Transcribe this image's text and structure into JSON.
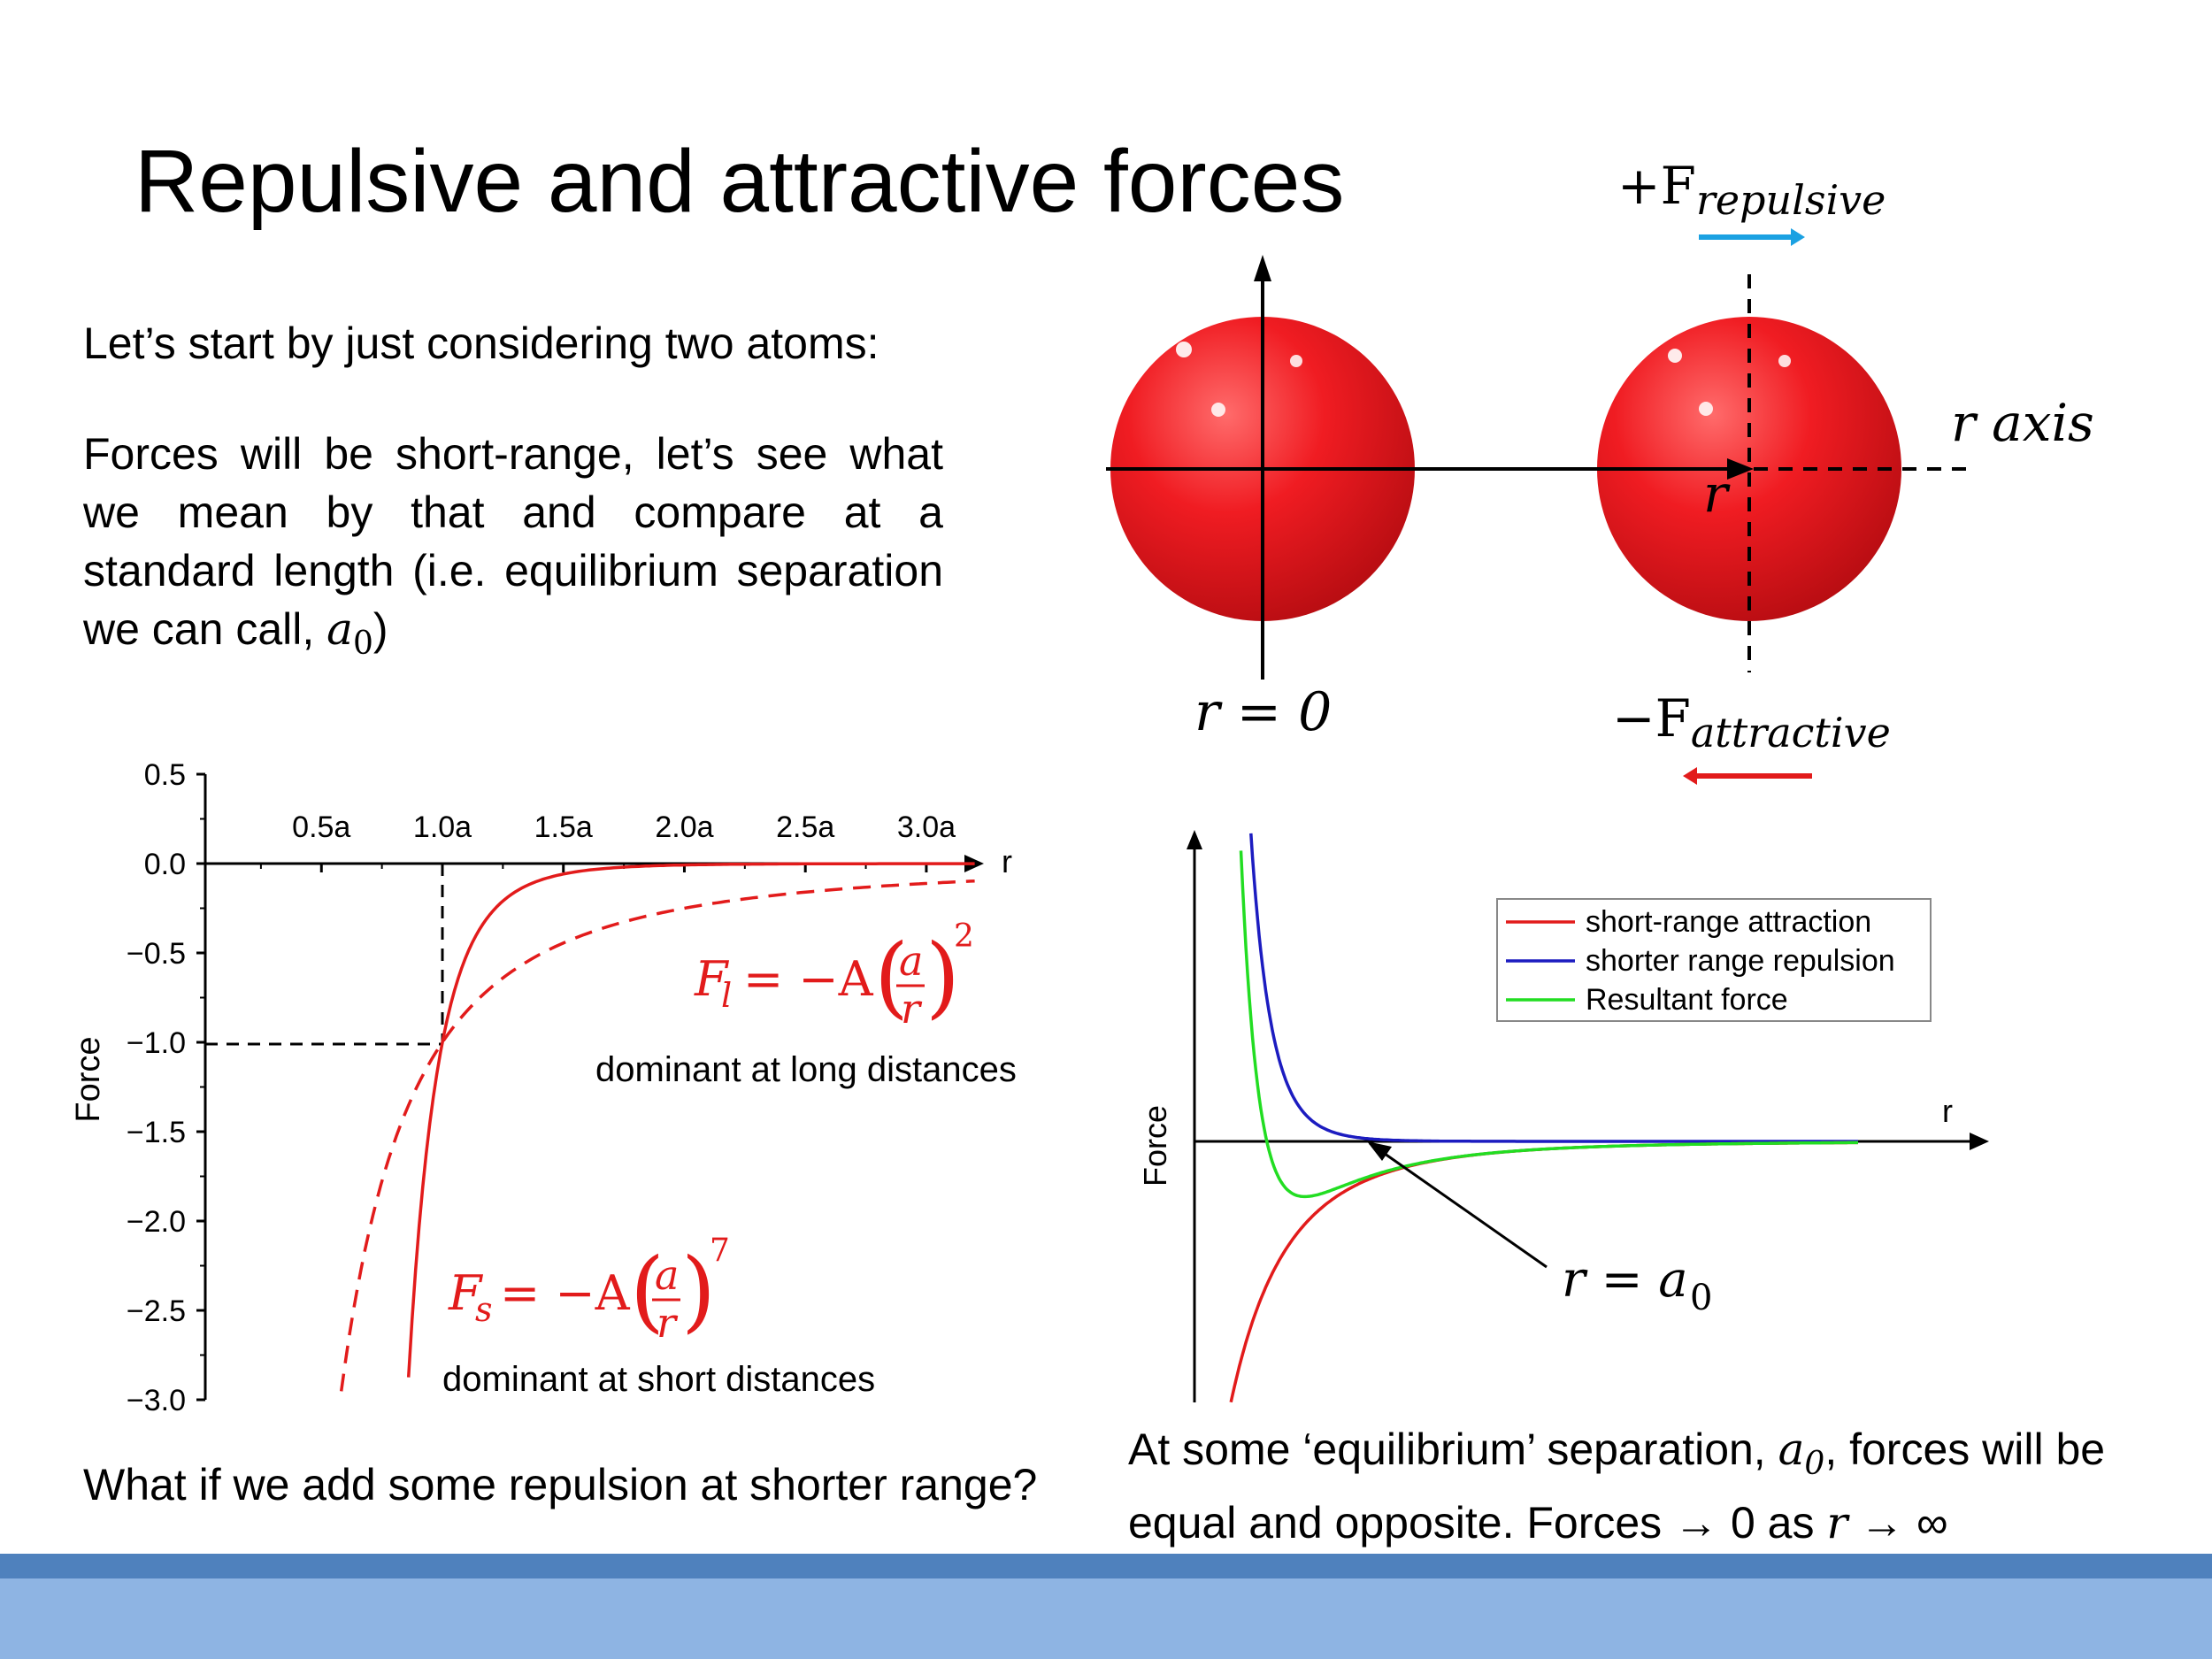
{
  "title": "Repulsive and attractive forces",
  "intro": "Let’s start by just considering two atoms:",
  "paragraph": {
    "text": "Forces will be short-range, let’s see what we mean by that and compare at a standard length (i.e. equilibrium separation we can call, ",
    "symbol": "a",
    "subscript": "0",
    "close": ")"
  },
  "question": "What if we add some repulsion at shorter range?",
  "conclusion": {
    "part1": "At some ‘equilibrium’ separation, ",
    "sym": "a",
    "sub": "0",
    "part2": ", forces will be equal and opposite. Forces → 0 as ",
    "r": "r",
    "arrow": " → ∞"
  },
  "diagram": {
    "plus_sign": "+F",
    "plus_sub": "repulsive",
    "minus_sign": "−F",
    "minus_sub": "attractive",
    "r_axis": "r axis",
    "r_label": "r",
    "r_zero": "r = 0",
    "colors": {
      "atom": "#e8141c",
      "repulsive_arrow": "#1ba1e2",
      "attractive_arrow": "#e21b1b"
    }
  },
  "chart_left": {
    "ylabel": "Force",
    "xlabel": "r",
    "y_ticks": [
      "0.5",
      "0.0",
      "−0.5",
      "−1.0",
      "−1.5",
      "−2.0",
      "−2.5",
      "−3.0"
    ],
    "x_ticks": [
      "0.5a",
      "1.0a",
      "1.5a",
      "2.0a",
      "2.5a",
      "3.0a"
    ],
    "eq_long": {
      "lhs": "F",
      "sub": "l",
      "rhs": "= −A",
      "num": "a",
      "den": "r",
      "exp": "2"
    },
    "eq_short": {
      "lhs": "F",
      "sub": "s",
      "rhs": "= −A",
      "num": "a",
      "den": "r",
      "exp": "7"
    },
    "long_label": "dominant at long distances",
    "short_label": "dominant at short distances"
  },
  "chart_right": {
    "ylabel": "Force",
    "xlabel": "r",
    "legend": [
      "short-range attraction",
      "shorter range repulsion",
      "Resultant force"
    ],
    "annotation_lhs": "r = a",
    "annotation_sub": "0"
  },
  "chart_data": [
    {
      "type": "line",
      "xlabel": "r",
      "ylabel": "Force",
      "x_ticks": [
        "0.5a",
        "1.0a",
        "1.5a",
        "2.0a",
        "2.5a",
        "3.0a"
      ],
      "xlim": [
        0.0,
        3.25
      ],
      "ylim": [
        -3.0,
        0.5
      ],
      "series": [
        {
          "name": "F_s = −A(a/r)^7",
          "style": "solid",
          "color": "#e21b1b",
          "x": [
            0.86,
            0.9,
            0.95,
            1.0,
            1.1,
            1.2,
            1.3,
            1.4,
            1.5,
            1.75,
            2.0,
            2.5,
            3.0,
            3.2
          ],
          "y": [
            -2.87,
            -2.09,
            -1.43,
            -1.0,
            -0.51,
            -0.28,
            -0.16,
            -0.095,
            -0.059,
            -0.02,
            -0.008,
            -0.0016,
            -0.0005,
            -0.0003
          ]
        },
        {
          "name": "F_l = −A(a/r)^2",
          "style": "dashed",
          "color": "#e21b1b",
          "x": [
            0.58,
            0.6,
            0.7,
            0.8,
            0.9,
            1.0,
            1.2,
            1.4,
            1.6,
            1.8,
            2.0,
            2.5,
            3.0,
            3.2
          ],
          "y": [
            -2.97,
            -2.78,
            -2.04,
            -1.56,
            -1.23,
            -1.0,
            -0.69,
            -0.51,
            -0.39,
            -0.31,
            -0.25,
            -0.16,
            -0.11,
            -0.098
          ]
        }
      ]
    },
    {
      "type": "line",
      "xlabel": "r",
      "ylabel": "Force",
      "legend": [
        "short-range attraction",
        "shorter range repulsion",
        "Resultant force"
      ],
      "legend_position": "top-right",
      "series": [
        {
          "name": "short-range attraction",
          "color": "#e21b1b"
        },
        {
          "name": "shorter range repulsion",
          "color": "#1c1cc0"
        },
        {
          "name": "Resultant force",
          "color": "#22dd22"
        }
      ]
    }
  ]
}
